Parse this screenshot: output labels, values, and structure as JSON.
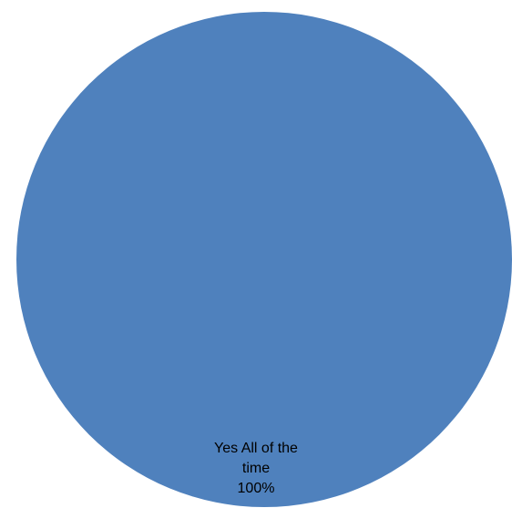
{
  "chart_data": {
    "type": "pie",
    "title": "",
    "slices": [
      {
        "label_lines": [
          "Yes All of the",
          "time"
        ],
        "value": 100,
        "percent_label": "100%",
        "color": "#4f81bd"
      }
    ],
    "legend": "none",
    "data_labels": "inside"
  }
}
